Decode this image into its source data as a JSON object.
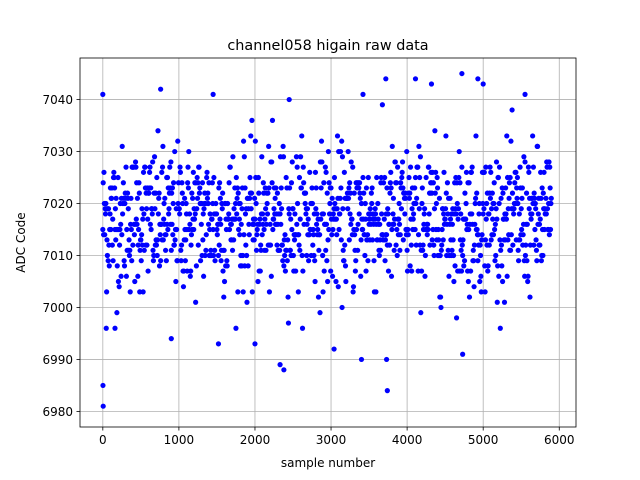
{
  "chart_data": {
    "type": "scatter",
    "title": "channel058 higain raw data",
    "xlabel": "sample number",
    "ylabel": "ADC Code",
    "xlim": [
      -300,
      6220
    ],
    "ylim": [
      6977,
      7048
    ],
    "xticks": [
      0,
      1000,
      2000,
      3000,
      4000,
      5000,
      6000
    ],
    "yticks": [
      6980,
      6990,
      7000,
      7010,
      7020,
      7030,
      7040
    ],
    "grid": true,
    "marker_color": "#0000ff",
    "series": [
      {
        "n_points": 5900,
        "mean": 7017,
        "std": 6.8,
        "band_min": 6996,
        "band_max": 7039,
        "notable_points": [
          {
            "x": 0,
            "y": 7041
          },
          {
            "x": 2,
            "y": 6985
          },
          {
            "x": 5,
            "y": 6981
          },
          {
            "x": 45,
            "y": 6996
          },
          {
            "x": 160,
            "y": 6996
          },
          {
            "x": 760,
            "y": 7042
          },
          {
            "x": 900,
            "y": 6994
          },
          {
            "x": 1450,
            "y": 7041
          },
          {
            "x": 1520,
            "y": 6993
          },
          {
            "x": 2000,
            "y": 6993
          },
          {
            "x": 2330,
            "y": 6989
          },
          {
            "x": 2380,
            "y": 6988
          },
          {
            "x": 2450,
            "y": 7040
          },
          {
            "x": 3040,
            "y": 6992
          },
          {
            "x": 3400,
            "y": 6990
          },
          {
            "x": 3420,
            "y": 7041
          },
          {
            "x": 3720,
            "y": 7044
          },
          {
            "x": 3730,
            "y": 6990
          },
          {
            "x": 3740,
            "y": 6984
          },
          {
            "x": 4110,
            "y": 7044
          },
          {
            "x": 4320,
            "y": 7043
          },
          {
            "x": 4720,
            "y": 7045
          },
          {
            "x": 4730,
            "y": 6991
          },
          {
            "x": 4930,
            "y": 7044
          },
          {
            "x": 5000,
            "y": 7043
          },
          {
            "x": 5550,
            "y": 7041
          }
        ]
      }
    ]
  }
}
